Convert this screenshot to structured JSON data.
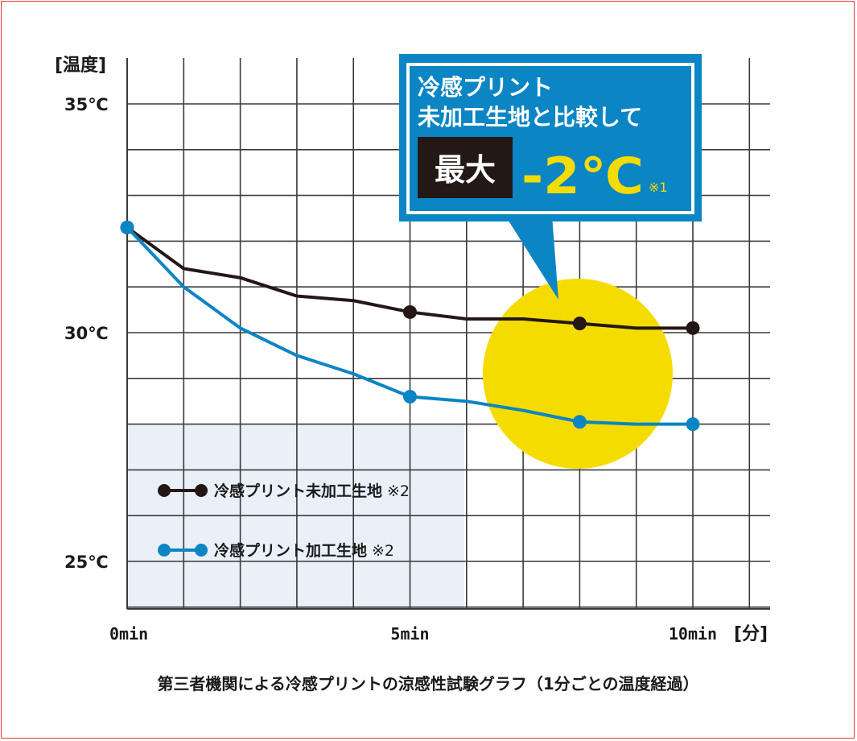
{
  "chart_data": {
    "type": "line",
    "ylabel": "[温度]",
    "xlabel": "[分]",
    "y_ticks": [
      {
        "value": 35,
        "label": "35℃"
      },
      {
        "value": 30,
        "label": "30℃"
      },
      {
        "value": 25,
        "label": "25℃"
      }
    ],
    "x_ticks": [
      {
        "value": 0,
        "label": "0min"
      },
      {
        "value": 5,
        "label": "5min"
      },
      {
        "value": 10,
        "label": "10min"
      }
    ],
    "xlim": [
      0,
      11.4
    ],
    "ylim": [
      24.0,
      36.0
    ],
    "grid": true,
    "series": [
      {
        "name": "冷感プリント未加工生地",
        "note": "※2",
        "color": "#231815",
        "x": [
          0,
          1,
          2,
          3,
          4,
          5,
          6,
          7,
          8,
          9,
          10
        ],
        "y": [
          32.3,
          31.4,
          31.2,
          30.8,
          30.7,
          30.45,
          30.3,
          30.3,
          30.2,
          30.1,
          30.1
        ],
        "markers_at": [
          0,
          5,
          8,
          10
        ]
      },
      {
        "name": "冷感プリント加工生地",
        "note": "※2",
        "color": "#0b85c3",
        "x": [
          0,
          1,
          2,
          3,
          4,
          5,
          6,
          7,
          8,
          9,
          10
        ],
        "y": [
          32.3,
          31.0,
          30.1,
          29.5,
          29.1,
          28.6,
          28.5,
          28.3,
          28.05,
          28.0,
          28.0
        ],
        "markers_at": [
          0,
          5,
          8,
          10
        ]
      }
    ],
    "legend_position": "bottom-left",
    "callout": {
      "line1": "冷感プリント",
      "line2": "未加工生地と比較して",
      "prefix": "最大",
      "value": "-2℃",
      "note": "※1"
    },
    "highlight_color": "#f5dc00",
    "caption": "第三者機関による冷感プリントの涼感性試験グラフ（1分ごとの温度経過）"
  }
}
